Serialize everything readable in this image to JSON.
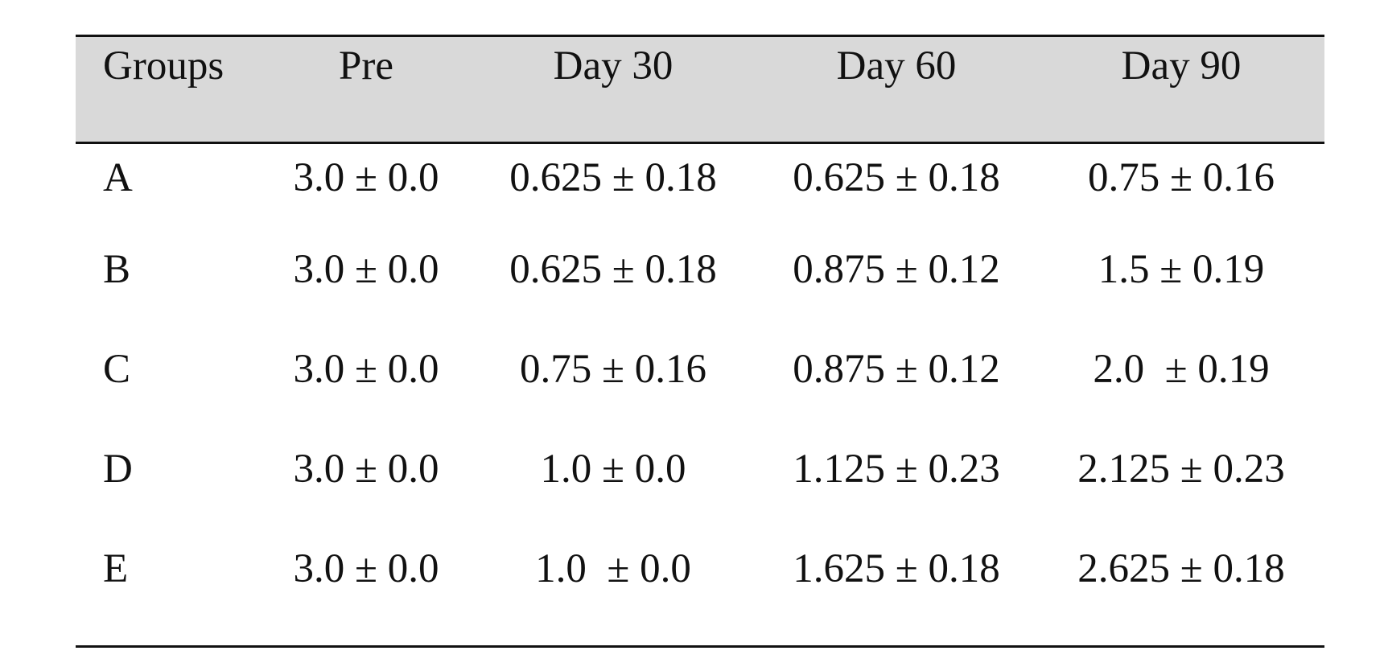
{
  "table": {
    "headers": [
      "Groups",
      "Pre",
      "Day 30",
      "Day 60",
      "Day 90"
    ],
    "rows": [
      [
        "A",
        "3.0 ± 0.0",
        "0.625 ± 0.18",
        "0.625 ± 0.18",
        "0.75 ± 0.16"
      ],
      [
        "B",
        "3.0 ± 0.0",
        "0.625 ± 0.18",
        "0.875 ± 0.12",
        "1.5 ± 0.19"
      ],
      [
        "C",
        "3.0 ± 0.0",
        "0.75 ± 0.16",
        "0.875 ± 0.12",
        "2.0  ± 0.19"
      ],
      [
        "D",
        "3.0 ± 0.0",
        "1.0 ± 0.0",
        "1.125 ± 0.23",
        "2.125 ± 0.23"
      ],
      [
        "E",
        "3.0 ± 0.0",
        "1.0  ± 0.0",
        "1.625 ± 0.18",
        "2.625 ± 0.18"
      ]
    ]
  },
  "colors": {
    "header_background": "#d9d9d9",
    "rule": "#111111",
    "text": "#111111"
  }
}
